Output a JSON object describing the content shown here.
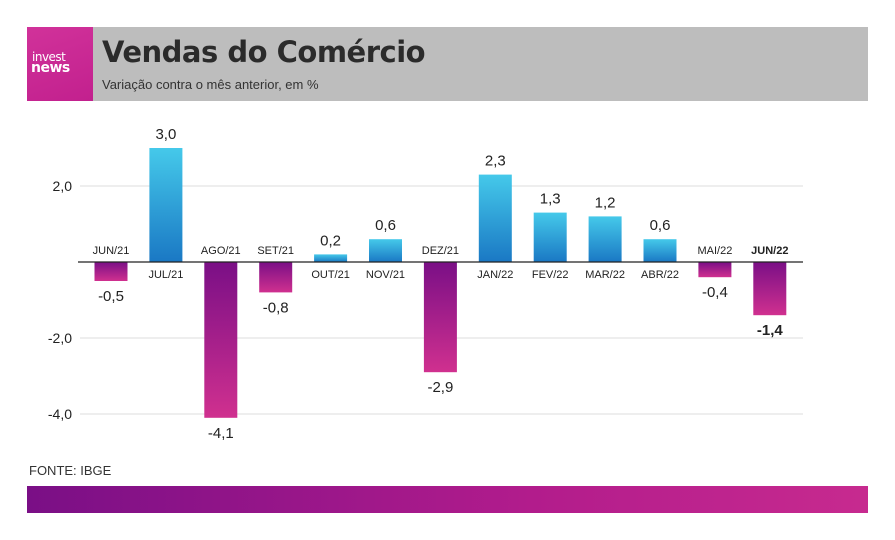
{
  "header": {
    "logo_line1": "invest",
    "logo_line2": "news",
    "title": "Vendas do Comércio",
    "subtitle": "Variação contra o mês anterior, em %"
  },
  "footer": {
    "source": "FONTE: IBGE"
  },
  "colors": {
    "positive_top": "#45c9ea",
    "positive_bottom": "#1a78c4",
    "negative_top": "#7a0f86",
    "negative_bottom": "#d0308f",
    "grid": "#dddddd",
    "axis": "#222222",
    "text": "#222222"
  },
  "chart_data": {
    "type": "bar",
    "title": "Vendas do Comércio",
    "subtitle": "Variação contra o mês anterior, em %",
    "xlabel": "",
    "ylabel": "",
    "ylim": [
      -4.5,
      3.2
    ],
    "yticks": [
      2.0,
      -2.0,
      -4.0
    ],
    "ytick_labels": [
      "2,0",
      "-2,0",
      "-4,0"
    ],
    "grid": true,
    "categories": [
      "JUN/21",
      "JUL/21",
      "AGO/21",
      "SET/21",
      "OUT/21",
      "NOV/21",
      "DEZ/21",
      "JAN/22",
      "FEV/22",
      "MAR/22",
      "ABR/22",
      "MAI/22",
      "JUN/22"
    ],
    "values": [
      -0.5,
      3.0,
      -4.1,
      -0.8,
      0.2,
      0.6,
      -2.9,
      2.3,
      1.3,
      1.2,
      0.6,
      -0.4,
      -1.4
    ],
    "value_labels": [
      "-0,5",
      "3,0",
      "-4,1",
      "-0,8",
      "0,2",
      "0,6",
      "-2,9",
      "2,3",
      "1,3",
      "1,2",
      "0,6",
      "-0,4",
      "-1,4"
    ],
    "highlight": "JUN/22"
  }
}
